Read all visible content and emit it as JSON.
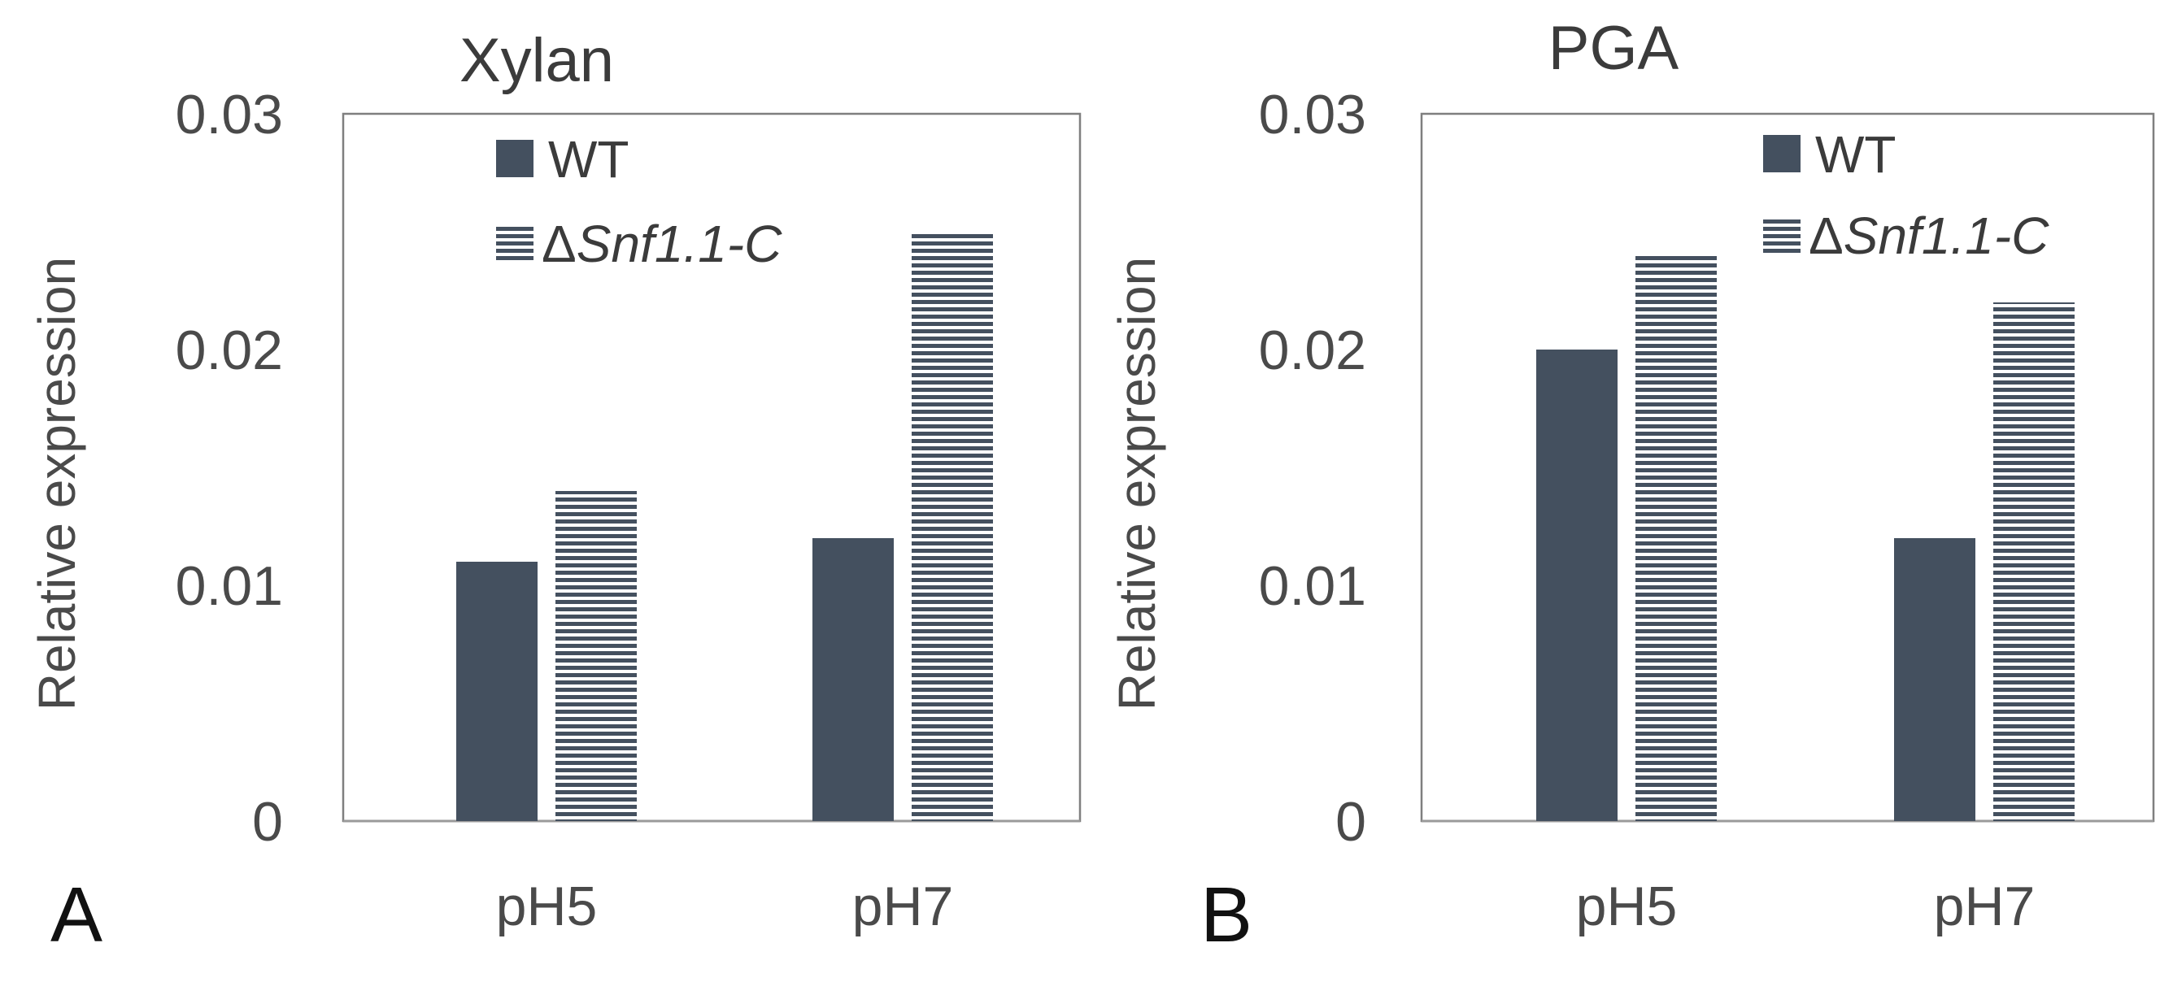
{
  "colors": {
    "wt_bar": "#44505f",
    "stripe": "#44505f",
    "axis": "#9a9a9a",
    "frame": "#7f7f7f",
    "text": "#4a4a4a"
  },
  "y_axis_label": "Relative expression",
  "chart_data": [
    {
      "type": "bar",
      "panel": "A",
      "title": "Xylan",
      "categories": [
        "pH5",
        "pH7"
      ],
      "series": [
        {
          "name": "WT",
          "values": [
            0.011,
            0.012
          ]
        },
        {
          "name": "ΔSnf1.1-C",
          "values": [
            0.014,
            0.025
          ]
        }
      ],
      "ylim": [
        0,
        0.03
      ],
      "yticks": [
        "0",
        "0.01",
        "0.02",
        "0.03"
      ],
      "ytick_values": [
        0,
        0.01,
        0.02,
        0.03
      ],
      "legend": {
        "prefix": "Δ",
        "italic_name": "Snf1.1-C"
      },
      "legend_position": "top-right"
    },
    {
      "type": "bar",
      "panel": "B",
      "title": "PGA",
      "categories": [
        "pH5",
        "pH7"
      ],
      "series": [
        {
          "name": "WT",
          "values": [
            0.02,
            0.012
          ]
        },
        {
          "name": "ΔSnf1.1-C",
          "values": [
            0.024,
            0.022
          ]
        }
      ],
      "ylim": [
        0,
        0.03
      ],
      "yticks": [
        "0",
        "0.01",
        "0.02",
        "0.03"
      ],
      "ytick_values": [
        0,
        0.01,
        0.02,
        0.03
      ],
      "legend": {
        "prefix": "Δ",
        "italic_name": "Snf1.1-C"
      },
      "legend_position": "top-right"
    }
  ]
}
